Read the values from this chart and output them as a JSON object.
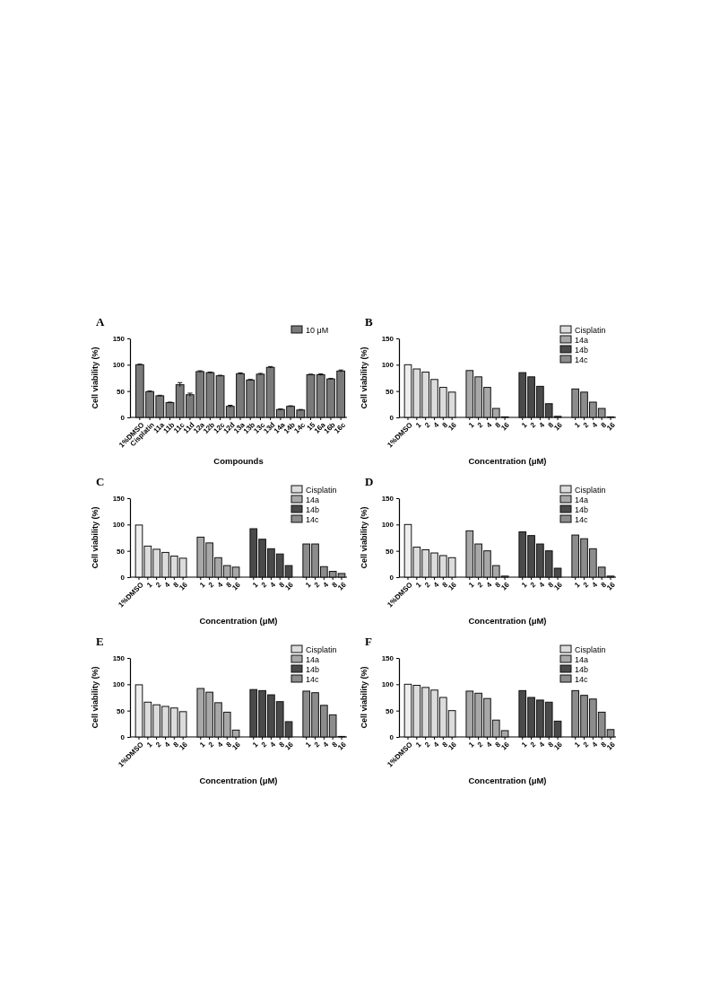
{
  "chart_data": [
    {
      "type": "bar",
      "title": "A",
      "xlabel": "Compounds",
      "ylabel": "Cell viability (%)",
      "ylim": [
        0,
        150
      ],
      "yticks": [
        0,
        50,
        100,
        150
      ],
      "legend": "top right",
      "categories": [
        "1%DMSO",
        "Cisplatin",
        "11a",
        "11b",
        "11c",
        "11d",
        "12a",
        "12b",
        "12c",
        "12d",
        "13a",
        "13b",
        "13c",
        "13d",
        "14a",
        "14b",
        "14c",
        "15",
        "16a",
        "16b",
        "16c"
      ],
      "series": [
        {
          "name": "10 μM",
          "color": "#7a7a7a",
          "values": [
            100,
            49,
            41,
            28,
            62,
            43,
            87,
            85,
            79,
            21,
            83,
            71,
            82,
            95,
            15,
            21,
            14,
            81,
            81,
            73,
            88
          ],
          "errors": [
            1,
            1,
            1,
            1,
            4,
            3,
            1.5,
            1,
            1,
            2,
            1.5,
            1,
            1.5,
            1.5,
            1,
            1,
            1,
            1,
            1.5,
            1,
            2
          ]
        }
      ]
    },
    {
      "type": "bar",
      "title": "B",
      "xlabel": "Concentration (μM)",
      "ylabel": "Cell viability (%)",
      "ylim": [
        0,
        150
      ],
      "yticks": [
        0,
        50,
        100,
        150
      ],
      "legend": "top right",
      "categories": [
        "1%DMSO",
        "1",
        "2",
        "4",
        "8",
        "16",
        null,
        "1",
        "2",
        "4",
        "8",
        "16",
        null,
        "1",
        "2",
        "4",
        "8",
        "16",
        null,
        "1",
        "2",
        "4",
        "8",
        "16"
      ],
      "series": [
        {
          "color": "#eeeeee",
          "values": [
            100,
            null,
            null,
            null,
            null,
            null,
            null,
            null,
            null,
            null,
            null,
            null,
            null,
            null,
            null,
            null,
            null,
            null,
            null,
            null,
            null,
            null,
            null,
            null
          ]
        },
        {
          "name": "Cisplatin",
          "color": "#dcdcdc",
          "values": [
            null,
            92,
            86,
            72,
            57,
            48,
            null,
            null,
            null,
            null,
            null,
            null,
            null,
            null,
            null,
            null,
            null,
            null,
            null,
            null,
            null,
            null,
            null,
            null
          ]
        },
        {
          "name": "14a",
          "color": "#a8a8a8",
          "values": [
            null,
            null,
            null,
            null,
            null,
            null,
            null,
            89,
            77,
            57,
            17,
            1,
            null,
            null,
            null,
            null,
            null,
            null,
            null,
            null,
            null,
            null,
            null,
            null
          ]
        },
        {
          "name": "14b",
          "color": "#4a4a4a",
          "values": [
            null,
            null,
            null,
            null,
            null,
            null,
            null,
            null,
            null,
            null,
            null,
            null,
            null,
            85,
            77,
            59,
            26,
            2,
            null,
            null,
            null,
            null,
            null,
            null
          ]
        },
        {
          "name": "14c",
          "color": "#8c8c8c",
          "values": [
            null,
            null,
            null,
            null,
            null,
            null,
            null,
            null,
            null,
            null,
            null,
            null,
            null,
            null,
            null,
            null,
            null,
            null,
            null,
            54,
            48,
            29,
            17,
            1
          ]
        }
      ]
    },
    {
      "type": "bar",
      "title": "C",
      "xlabel": "Concentration (μM)",
      "ylabel": "Cell viability (%)",
      "ylim": [
        0,
        150
      ],
      "yticks": [
        0,
        50,
        100,
        150
      ],
      "legend": "top right",
      "categories": [
        "1%DMSO",
        "1",
        "2",
        "4",
        "8",
        "16",
        null,
        "1",
        "2",
        "4",
        "8",
        "16",
        null,
        "1",
        "2",
        "4",
        "8",
        "16",
        null,
        "1",
        "2",
        "4",
        "8",
        "16"
      ],
      "series": [
        {
          "color": "#eeeeee",
          "values": [
            99,
            null,
            null,
            null,
            null,
            null,
            null,
            null,
            null,
            null,
            null,
            null,
            null,
            null,
            null,
            null,
            null,
            null,
            null,
            null,
            null,
            null,
            null,
            null
          ]
        },
        {
          "name": "Cisplatin",
          "color": "#dcdcdc",
          "values": [
            null,
            59,
            53,
            47,
            40,
            36,
            null,
            null,
            null,
            null,
            null,
            null,
            null,
            null,
            null,
            null,
            null,
            null,
            null,
            null,
            null,
            null,
            null,
            null
          ]
        },
        {
          "name": "14a",
          "color": "#a8a8a8",
          "values": [
            null,
            null,
            null,
            null,
            null,
            null,
            null,
            76,
            65,
            37,
            22,
            19,
            null,
            null,
            null,
            null,
            null,
            null,
            null,
            null,
            null,
            null,
            null,
            null
          ]
        },
        {
          "name": "14b",
          "color": "#4a4a4a",
          "values": [
            null,
            null,
            null,
            null,
            null,
            null,
            null,
            null,
            null,
            null,
            null,
            null,
            null,
            92,
            72,
            54,
            44,
            22,
            null,
            null,
            null,
            null,
            null,
            null
          ]
        },
        {
          "name": "14c",
          "color": "#8c8c8c",
          "values": [
            null,
            null,
            null,
            null,
            null,
            null,
            null,
            null,
            null,
            null,
            null,
            null,
            null,
            null,
            null,
            null,
            null,
            null,
            null,
            63,
            63,
            20,
            11,
            7
          ]
        }
      ]
    },
    {
      "type": "bar",
      "title": "D",
      "xlabel": "Concentration (μM)",
      "ylabel": "Cell viability (%)",
      "ylim": [
        0,
        150
      ],
      "yticks": [
        0,
        50,
        100,
        150
      ],
      "legend": "top right",
      "categories": [
        "1%DMSO",
        "1",
        "2",
        "4",
        "8",
        "16",
        null,
        "1",
        "2",
        "4",
        "8",
        "16",
        null,
        "1",
        "2",
        "4",
        "8",
        "16",
        null,
        "1",
        "2",
        "4",
        "8",
        "16"
      ],
      "series": [
        {
          "color": "#eeeeee",
          "values": [
            100,
            null,
            null,
            null,
            null,
            null,
            null,
            null,
            null,
            null,
            null,
            null,
            null,
            null,
            null,
            null,
            null,
            null,
            null,
            null,
            null,
            null,
            null,
            null
          ]
        },
        {
          "name": "Cisplatin",
          "color": "#dcdcdc",
          "values": [
            null,
            57,
            52,
            46,
            41,
            37,
            null,
            null,
            null,
            null,
            null,
            null,
            null,
            null,
            null,
            null,
            null,
            null,
            null,
            null,
            null,
            null,
            null,
            null
          ]
        },
        {
          "name": "14a",
          "color": "#a8a8a8",
          "values": [
            null,
            null,
            null,
            null,
            null,
            null,
            null,
            88,
            63,
            50,
            22,
            2,
            null,
            null,
            null,
            null,
            null,
            null,
            null,
            null,
            null,
            null,
            null,
            null
          ]
        },
        {
          "name": "14b",
          "color": "#4a4a4a",
          "values": [
            null,
            null,
            null,
            null,
            null,
            null,
            null,
            null,
            null,
            null,
            null,
            null,
            null,
            86,
            79,
            63,
            50,
            17,
            null,
            null,
            null,
            null,
            null,
            null
          ]
        },
        {
          "name": "14c",
          "color": "#8c8c8c",
          "values": [
            null,
            null,
            null,
            null,
            null,
            null,
            null,
            null,
            null,
            null,
            null,
            null,
            null,
            null,
            null,
            null,
            null,
            null,
            null,
            80,
            73,
            54,
            19,
            2
          ]
        }
      ]
    },
    {
      "type": "bar",
      "title": "E",
      "xlabel": "Concentration (μM)",
      "ylabel": "Cell viability (%)",
      "ylim": [
        0,
        150
      ],
      "yticks": [
        0,
        50,
        100,
        150
      ],
      "legend": "top right",
      "categories": [
        "1%DMSO",
        "1",
        "2",
        "4",
        "8",
        "16",
        null,
        "1",
        "2",
        "4",
        "8",
        "16",
        null,
        "1",
        "2",
        "4",
        "8",
        "16",
        null,
        "1",
        "2",
        "4",
        "8",
        "16"
      ],
      "series": [
        {
          "color": "#eeeeee",
          "values": [
            99,
            null,
            null,
            null,
            null,
            null,
            null,
            null,
            null,
            null,
            null,
            null,
            null,
            null,
            null,
            null,
            null,
            null,
            null,
            null,
            null,
            null,
            null,
            null
          ]
        },
        {
          "name": "Cisplatin",
          "color": "#dcdcdc",
          "values": [
            null,
            66,
            61,
            58,
            55,
            48,
            null,
            null,
            null,
            null,
            null,
            null,
            null,
            null,
            null,
            null,
            null,
            null,
            null,
            null,
            null,
            null,
            null,
            null
          ]
        },
        {
          "name": "14a",
          "color": "#a8a8a8",
          "values": [
            null,
            null,
            null,
            null,
            null,
            null,
            null,
            92,
            85,
            65,
            47,
            13,
            null,
            null,
            null,
            null,
            null,
            null,
            null,
            null,
            null,
            null,
            null,
            null
          ]
        },
        {
          "name": "14b",
          "color": "#4a4a4a",
          "values": [
            null,
            null,
            null,
            null,
            null,
            null,
            null,
            null,
            null,
            null,
            null,
            null,
            null,
            90,
            88,
            80,
            67,
            29,
            null,
            null,
            null,
            null,
            null,
            null
          ]
        },
        {
          "name": "14c",
          "color": "#8c8c8c",
          "values": [
            null,
            null,
            null,
            null,
            null,
            null,
            null,
            null,
            null,
            null,
            null,
            null,
            null,
            null,
            null,
            null,
            null,
            null,
            null,
            87,
            84,
            60,
            42,
            1
          ]
        }
      ]
    },
    {
      "type": "bar",
      "title": "F",
      "xlabel": "Concentration (μM)",
      "ylabel": "Cell viability (%)",
      "ylim": [
        0,
        150
      ],
      "yticks": [
        0,
        50,
        100,
        150
      ],
      "legend": "top right",
      "categories": [
        "1%DMSO",
        "1",
        "2",
        "4",
        "8",
        "16",
        null,
        "1",
        "2",
        "4",
        "8",
        "16",
        null,
        "1",
        "2",
        "4",
        "8",
        "16",
        null,
        "1",
        "2",
        "4",
        "8",
        "16"
      ],
      "series": [
        {
          "color": "#eeeeee",
          "values": [
            100,
            null,
            null,
            null,
            null,
            null,
            null,
            null,
            null,
            null,
            null,
            null,
            null,
            null,
            null,
            null,
            null,
            null,
            null,
            null,
            null,
            null,
            null,
            null
          ]
        },
        {
          "name": "Cisplatin",
          "color": "#dcdcdc",
          "values": [
            null,
            98,
            94,
            89,
            75,
            50,
            null,
            null,
            null,
            null,
            null,
            null,
            null,
            null,
            null,
            null,
            null,
            null,
            null,
            null,
            null,
            null,
            null,
            null
          ]
        },
        {
          "name": "14a",
          "color": "#a8a8a8",
          "values": [
            null,
            null,
            null,
            null,
            null,
            null,
            null,
            87,
            83,
            73,
            32,
            12,
            null,
            null,
            null,
            null,
            null,
            null,
            null,
            null,
            null,
            null,
            null,
            null
          ]
        },
        {
          "name": "14b",
          "color": "#4a4a4a",
          "values": [
            null,
            null,
            null,
            null,
            null,
            null,
            null,
            null,
            null,
            null,
            null,
            null,
            null,
            88,
            75,
            70,
            66,
            30,
            null,
            null,
            null,
            null,
            null,
            null
          ]
        },
        {
          "name": "14c",
          "color": "#8c8c8c",
          "values": [
            null,
            null,
            null,
            null,
            null,
            null,
            null,
            null,
            null,
            null,
            null,
            null,
            null,
            null,
            null,
            null,
            null,
            null,
            null,
            88,
            79,
            72,
            47,
            14
          ]
        }
      ]
    }
  ]
}
